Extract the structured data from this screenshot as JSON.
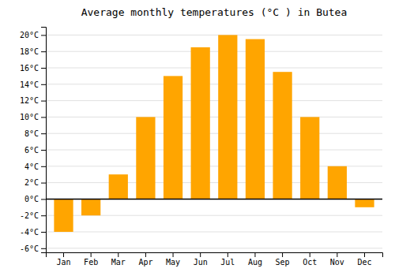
{
  "chart_data": {
    "type": "bar",
    "title": "Average monthly temperatures (°C ) in Butea",
    "categories": [
      "Jan",
      "Feb",
      "Mar",
      "Apr",
      "May",
      "Jun",
      "Jul",
      "Aug",
      "Sep",
      "Oct",
      "Nov",
      "Dec"
    ],
    "values": [
      -4,
      -2,
      3,
      10,
      15,
      18.5,
      20,
      19.5,
      15.5,
      10,
      4,
      -1
    ],
    "color": "#FFA500",
    "ylim": [
      -6.5,
      21
    ],
    "yticks": [
      {
        "value": -6,
        "label": "-6°C"
      },
      {
        "value": -4,
        "label": "-4°C"
      },
      {
        "value": -2,
        "label": "-2°C"
      },
      {
        "value": 0,
        "label": "0°C"
      },
      {
        "value": 2,
        "label": "2°C"
      },
      {
        "value": 4,
        "label": "4°C"
      },
      {
        "value": 6,
        "label": "6°C"
      },
      {
        "value": 8,
        "label": "8°C"
      },
      {
        "value": 10,
        "label": "10°C"
      },
      {
        "value": 12,
        "label": "12°C"
      },
      {
        "value": 14,
        "label": "14°C"
      },
      {
        "value": 16,
        "label": "16°C"
      },
      {
        "value": 18,
        "label": "18°C"
      },
      {
        "value": 20,
        "label": "20°C"
      }
    ],
    "grid": true
  }
}
